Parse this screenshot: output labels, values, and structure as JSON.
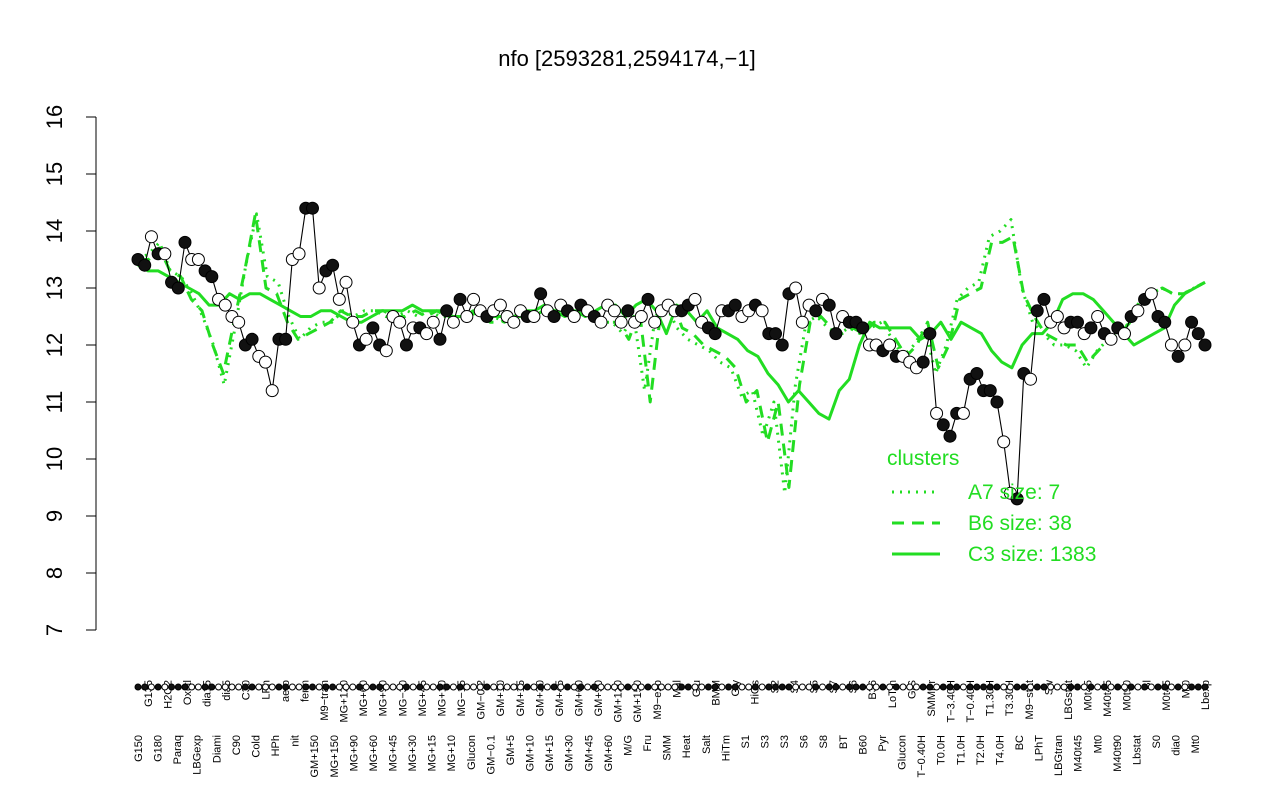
{
  "colors": {
    "cluster_line": "#22dd22",
    "points_filled": "#111111",
    "points_open": "#ffffff",
    "axis": "#000000"
  },
  "chart_data": {
    "type": "line",
    "title": "nfo [2593281,2594174,−1]",
    "xlabel": "",
    "ylabel": "",
    "ylim": [
      7,
      16
    ],
    "yticks": [
      7,
      8,
      9,
      10,
      11,
      12,
      13,
      14,
      15,
      16
    ],
    "grid": false,
    "legend": {
      "title": "clusters",
      "position": "right",
      "entries": [
        {
          "label": "A7 size: 7",
          "style": "dotted"
        },
        {
          "label": "B6 size: 38",
          "style": "dashed"
        },
        {
          "label": "C3 size: 1383",
          "style": "solid"
        }
      ]
    },
    "tick_labels_upper": [
      "G135",
      "H2O2",
      "Oxctl",
      "dia15",
      "dia5",
      "C30",
      "LPh",
      "aero",
      "ferm",
      "M9−tran",
      "MG+120",
      "MG+60",
      "MG+90",
      "MG−30",
      "MG+45",
      "MG+10",
      "MG−15",
      "GM−0.2",
      "GM+10",
      "GM+15",
      "GM+30",
      "GM+45",
      "GM+60",
      "GM+90",
      "GM+120",
      "GM+150",
      "M9−exp",
      "Mal",
      "Glu",
      "BMM",
      "Gly",
      "HiOs",
      "S2",
      "S4",
      "S5",
      "S7",
      "S6",
      "B36",
      "LoTm",
      "G/S",
      "SMMPr",
      "T−3.40H",
      "T−0.40H",
      "T1.30H",
      "T3.30H",
      "M9−stat",
      "Sw",
      "LBGstat",
      "M0t45",
      "M40t45",
      "M0t90",
      "Bl",
      "M0t45",
      "Mt0",
      "Lbexp"
    ],
    "tick_labels_lower": [
      "G150",
      "G180",
      "Paraq",
      "LBGexp",
      "Diami",
      "C90",
      "Cold",
      "HPh",
      "nit",
      "GM+150",
      "MG+150",
      "MG+90",
      "MG+60",
      "MG+45",
      "MG+30",
      "MG+15",
      "MG+10",
      "Glucon",
      "GM−0.1",
      "GM+5",
      "GM+10",
      "GM+15",
      "GM+30",
      "GM+45",
      "GM+60",
      "M/G",
      "Fru",
      "SMM",
      "Heat",
      "Salt",
      "HiTm",
      "S1",
      "S3",
      "S3",
      "S6",
      "S8",
      "BT",
      "B60",
      "Pyr",
      "Glucon",
      "T−0.40H",
      "T0.0H",
      "T1.0H",
      "T2.0H",
      "T4.0H",
      "BC",
      "LPhT",
      "LBGtran",
      "M40t45",
      "Mt0",
      "M40t90",
      "Lbstat",
      "S0",
      "dia0",
      "Mt0"
    ],
    "series": [
      {
        "cluster": "C3",
        "style": "solid",
        "values": [
          13.4,
          13.3,
          13.3,
          13.2,
          13.1,
          13.0,
          12.9,
          12.7,
          12.7,
          12.9,
          12.8,
          12.9,
          12.9,
          12.8,
          12.7,
          12.6,
          12.5,
          12.5,
          12.6,
          12.6,
          12.5,
          12.4,
          12.4,
          12.5,
          12.6,
          12.6,
          12.6,
          12.7,
          12.6,
          12.6,
          12.6,
          12.5,
          12.5,
          12.6,
          12.5,
          12.5,
          12.5,
          12.5,
          12.6,
          12.6,
          12.7,
          12.6,
          12.6,
          12.6,
          12.5,
          12.6,
          12.7,
          12.7,
          12.5,
          12.7,
          12.8,
          12.6,
          12.2,
          12.7,
          12.6,
          12.4,
          12.6,
          12.3,
          12.2,
          12.1,
          11.9,
          11.8,
          11.5,
          11.3,
          11.0,
          11.2,
          11.0,
          10.8,
          10.7,
          11.2,
          11.4,
          12.0,
          12.4,
          12.3,
          12.3,
          12.3,
          12.3,
          12.1,
          12.2,
          12.4,
          12.1,
          12.4,
          12.3,
          12.2,
          11.9,
          11.7,
          11.6,
          12.0,
          12.2,
          12.2,
          12.4,
          12.8,
          12.9,
          12.9,
          12.8,
          12.6,
          12.4,
          12.2,
          12.0,
          12.1,
          12.2,
          12.3,
          12.7,
          12.9,
          13.0,
          13.1
        ]
      },
      {
        "cluster": "B6",
        "style": "dashed",
        "values": [
          13.5,
          13.5,
          13.7,
          13.3,
          13.2,
          12.8,
          12.6,
          12.0,
          11.5,
          12.4,
          13.3,
          14.3,
          13.0,
          12.9,
          12.4,
          12.1,
          12.2,
          12.3,
          12.4,
          12.6,
          12.5,
          12.5,
          12.6,
          12.6,
          12.5,
          12.5,
          12.6,
          12.5,
          12.6,
          12.5,
          12.5,
          12.5,
          12.6,
          12.4,
          12.4,
          12.5,
          12.5,
          12.5,
          12.6,
          12.6,
          12.5,
          12.6,
          12.5,
          12.5,
          12.4,
          12.4,
          12.1,
          12.6,
          11.0,
          12.6,
          12.8,
          12.3,
          12.2,
          12.0,
          11.9,
          11.8,
          11.6,
          11.0,
          11.2,
          10.3,
          11.0,
          9.5,
          11.3,
          12.4,
          12.5,
          12.3,
          12.2,
          12.3,
          12.2,
          12.4,
          12.4,
          12.1,
          11.8,
          12.0,
          12.4,
          11.6,
          12.0,
          12.8,
          12.9,
          13.0,
          13.8,
          13.8,
          13.9,
          12.9,
          12.5,
          12.2,
          12.1,
          12.0,
          12.0,
          11.7,
          11.9,
          12.1,
          12.2,
          12.4,
          12.8,
          12.9,
          13.0,
          12.9,
          12.9,
          13.0,
          13.1
        ]
      },
      {
        "cluster": "A7",
        "style": "dotted",
        "values": [
          13.5,
          13.6,
          13.8,
          13.3,
          13.2,
          12.9,
          12.5,
          12.0,
          11.3,
          12.3,
          13.4,
          14.3,
          13.2,
          13.1,
          12.5,
          12.1,
          12.3,
          12.4,
          12.4,
          12.6,
          12.5,
          12.6,
          12.6,
          12.5,
          12.5,
          12.6,
          12.5,
          12.6,
          12.5,
          12.5,
          12.5,
          12.6,
          12.5,
          12.5,
          12.4,
          12.5,
          12.5,
          12.6,
          12.6,
          12.5,
          12.6,
          12.5,
          12.5,
          12.4,
          12.4,
          12.2,
          12.5,
          11.2,
          12.5,
          12.7,
          12.3,
          12.1,
          12.0,
          11.9,
          11.7,
          11.6,
          11.1,
          11.2,
          10.4,
          11.0,
          9.4,
          11.3,
          12.4,
          12.5,
          12.3,
          12.2,
          12.3,
          12.2,
          12.3,
          12.4,
          12.1,
          11.8,
          12.0,
          12.3,
          11.5,
          12.0,
          12.8,
          13.0,
          13.1,
          13.9,
          14.0,
          14.2,
          13.0,
          12.4,
          12.2,
          12.0,
          12.0,
          11.9,
          11.6,
          11.9,
          12.1,
          12.2,
          12.4,
          12.8,
          12.9,
          13.0,
          12.9,
          12.9,
          13.0,
          13.1
        ]
      }
    ],
    "points": {
      "x": [
        1,
        2,
        3,
        4,
        5,
        6,
        7,
        8,
        9,
        10,
        11,
        12,
        13,
        14,
        15,
        16,
        17,
        18,
        19,
        20,
        21,
        22,
        23,
        24,
        25,
        26,
        27,
        28,
        29,
        30,
        31,
        32,
        33,
        34,
        35,
        36,
        37,
        38,
        39,
        40,
        41,
        42,
        43,
        44,
        45,
        46,
        47,
        48,
        49,
        50,
        51,
        52,
        53,
        54,
        55,
        56,
        57,
        58,
        59,
        60,
        61,
        62,
        63,
        64,
        65,
        66,
        67,
        68,
        69,
        70,
        71,
        72,
        73,
        74,
        75,
        76,
        77,
        78,
        79,
        80,
        81,
        82,
        83,
        84,
        85,
        86,
        87,
        88,
        89,
        90,
        91,
        92,
        93,
        94,
        95,
        96,
        97,
        98,
        99,
        100,
        101,
        102,
        103,
        104,
        105,
        106,
        107,
        108,
        109,
        110,
        111,
        112,
        113,
        114,
        115,
        116,
        117,
        118,
        119,
        120,
        121,
        122,
        123,
        124,
        125,
        126,
        127,
        128,
        129,
        130,
        131,
        132,
        133,
        134,
        135,
        136,
        137,
        138,
        139,
        140,
        141,
        142,
        143,
        144,
        145,
        146,
        147,
        148,
        149,
        150,
        151,
        152,
        153,
        154,
        155,
        156,
        157,
        158,
        159,
        160
      ],
      "y": [
        13.5,
        13.4,
        13.9,
        13.6,
        13.6,
        13.1,
        13.0,
        13.8,
        13.5,
        13.5,
        13.3,
        13.2,
        12.8,
        12.7,
        12.5,
        12.4,
        12.0,
        12.1,
        11.8,
        11.7,
        11.2,
        12.1,
        12.1,
        13.5,
        13.6,
        14.4,
        14.4,
        13.0,
        13.3,
        13.4,
        12.8,
        13.1,
        12.4,
        12.0,
        12.1,
        12.3,
        12.0,
        11.9,
        12.5,
        12.4,
        12.0,
        12.3,
        12.3,
        12.2,
        12.4,
        12.1,
        12.6,
        12.4,
        12.8,
        12.5,
        12.8,
        12.6,
        12.5,
        12.6,
        12.7,
        12.5,
        12.4,
        12.6,
        12.5,
        12.5,
        12.9,
        12.6,
        12.5,
        12.7,
        12.6,
        12.5,
        12.7,
        12.6,
        12.5,
        12.4,
        12.7,
        12.6,
        12.4,
        12.6,
        12.4,
        12.5,
        12.8,
        12.4,
        12.6,
        12.7,
        12.6,
        12.6,
        12.7,
        12.8,
        12.4,
        12.3,
        12.2,
        12.6,
        12.6,
        12.7,
        12.5,
        12.6,
        12.7,
        12.6,
        12.2,
        12.2,
        12.0,
        12.9,
        13.0,
        12.4,
        12.7,
        12.6,
        12.8,
        12.7,
        12.2,
        12.5,
        12.4,
        12.4,
        12.3,
        12.0,
        12.0,
        11.9,
        12.0,
        11.8,
        11.8,
        11.7,
        11.6,
        11.7,
        12.2,
        10.8,
        10.6,
        10.4,
        10.8,
        10.8,
        11.4,
        11.5,
        11.2,
        11.2,
        11.0,
        10.3,
        9.4,
        9.3,
        11.5,
        11.4,
        12.6,
        12.8,
        12.4,
        12.5,
        12.3,
        12.4,
        12.4,
        12.2,
        12.3,
        12.5,
        12.2,
        12.1,
        12.3,
        12.2,
        12.5,
        12.6,
        12.8,
        12.9,
        12.5,
        12.4,
        12.0,
        11.8,
        12.0,
        12.4,
        12.2,
        12.0
      ],
      "filled": [
        1,
        1,
        0,
        1,
        0,
        1,
        1,
        1,
        0,
        0,
        1,
        1,
        0,
        0,
        0,
        0,
        1,
        1,
        0,
        0,
        0,
        1,
        1,
        0,
        0,
        1,
        1,
        0,
        1,
        1,
        0,
        0,
        0,
        1,
        0,
        1,
        1,
        0,
        0,
        0,
        1,
        0,
        1,
        0,
        0,
        1,
        1,
        0,
        1,
        0,
        0,
        0,
        1,
        0,
        0,
        0,
        0,
        0,
        1,
        0,
        1,
        0,
        1,
        0,
        1,
        0,
        1,
        0,
        1,
        0,
        0,
        0,
        0,
        1,
        0,
        0,
        1,
        0,
        0,
        0,
        0,
        1,
        1,
        0,
        0,
        1,
        1,
        0,
        1,
        1,
        0,
        0,
        1,
        0,
        1,
        1,
        1,
        1,
        0,
        0,
        0,
        1,
        0,
        1,
        1,
        0,
        1,
        1,
        1,
        0,
        0,
        1,
        0,
        1,
        0,
        0,
        0,
        1,
        1,
        0,
        1,
        1,
        1,
        0,
        1,
        1,
        1,
        1,
        1,
        0,
        0,
        1,
        1,
        0,
        1,
        1,
        0,
        0,
        0,
        1,
        1,
        0,
        1,
        0,
        1,
        0,
        1,
        0,
        1,
        0,
        1,
        0,
        1,
        1,
        0,
        1,
        0,
        1,
        1,
        1
      ]
    }
  }
}
